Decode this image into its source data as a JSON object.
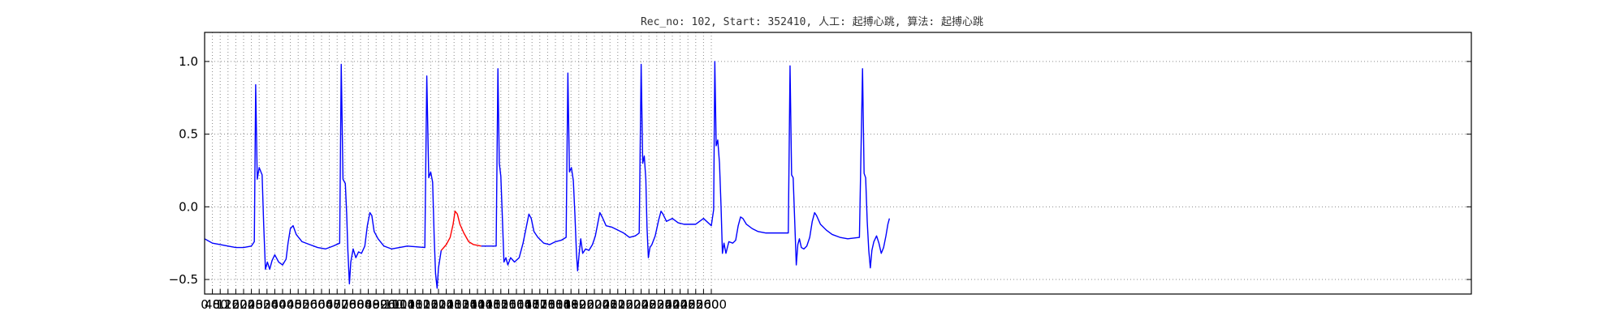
{
  "chart_data": {
    "type": "line",
    "title": "Rec_no: 102, Start: 352410, 人工: 起搏心跳, 算法: 起搏心跳",
    "xlabel": "",
    "ylabel": "",
    "xlim": [
      0,
      6500
    ],
    "ylim": [
      -0.6,
      1.2
    ],
    "grid": true,
    "ytick_labels": [
      "1.0",
      "0.5",
      "0.0",
      "−0.5"
    ],
    "yticks": [
      1.0,
      0.5,
      0.0,
      -0.5
    ],
    "xtick_labels": [
      "0",
      "40",
      "80",
      "120",
      "160",
      "200",
      "240",
      "280",
      "320",
      "360",
      "400",
      "440",
      "480",
      "520",
      "560",
      "600",
      "640",
      "680",
      "720",
      "760",
      "800",
      "840",
      "880",
      "920",
      "960",
      "1000",
      "1040",
      "1080",
      "1120",
      "1160",
      "1200",
      "1240",
      "1280",
      "1320",
      "1360",
      "1400",
      "1440",
      "1480",
      "1520",
      "1560",
      "1600",
      "1640",
      "1680",
      "1720",
      "1760",
      "1800",
      "1840",
      "1880",
      "1920",
      "1960",
      "2000",
      "2040",
      "2080",
      "2120",
      "2160",
      "2200",
      "2240",
      "2280",
      "2320",
      "2360",
      "2400",
      "2440",
      "2480",
      "2520",
      "2560",
      "2600"
    ],
    "highlight_range": [
      1219,
      1437
    ],
    "colors": {
      "normal": "#0000ff",
      "highlight": "#ff0000"
    },
    "series": [
      {
        "values": [
          [
            0,
            -0.22
          ],
          [
            40,
            -0.25
          ],
          [
            80,
            -0.26
          ],
          [
            120,
            -0.27
          ],
          [
            160,
            -0.28
          ],
          [
            200,
            -0.28
          ],
          [
            240,
            -0.27
          ],
          [
            255,
            -0.24
          ],
          [
            262,
            0.84
          ],
          [
            270,
            0.19
          ],
          [
            280,
            0.27
          ],
          [
            295,
            0.22
          ],
          [
            303,
            -0.12
          ],
          [
            312,
            -0.43
          ],
          [
            322,
            -0.38
          ],
          [
            334,
            -0.43
          ],
          [
            346,
            -0.37
          ],
          [
            360,
            -0.33
          ],
          [
            380,
            -0.38
          ],
          [
            400,
            -0.4
          ],
          [
            418,
            -0.36
          ],
          [
            428,
            -0.25
          ],
          [
            440,
            -0.15
          ],
          [
            454,
            -0.13
          ],
          [
            470,
            -0.19
          ],
          [
            500,
            -0.24
          ],
          [
            540,
            -0.26
          ],
          [
            580,
            -0.28
          ],
          [
            620,
            -0.29
          ],
          [
            660,
            -0.27
          ],
          [
            693,
            -0.25
          ],
          [
            701,
            0.98
          ],
          [
            710,
            0.19
          ],
          [
            722,
            0.16
          ],
          [
            729,
            -0.05
          ],
          [
            735,
            -0.3
          ],
          [
            743,
            -0.53
          ],
          [
            750,
            -0.38
          ],
          [
            762,
            -0.29
          ],
          [
            776,
            -0.35
          ],
          [
            790,
            -0.31
          ],
          [
            805,
            -0.32
          ],
          [
            822,
            -0.27
          ],
          [
            835,
            -0.13
          ],
          [
            848,
            -0.04
          ],
          [
            858,
            -0.06
          ],
          [
            870,
            -0.17
          ],
          [
            890,
            -0.22
          ],
          [
            920,
            -0.27
          ],
          [
            960,
            -0.29
          ],
          [
            1000,
            -0.28
          ],
          [
            1040,
            -0.27
          ],
          [
            1130,
            -0.28
          ],
          [
            1140,
            0.9
          ],
          [
            1150,
            0.2
          ],
          [
            1160,
            0.24
          ],
          [
            1170,
            0.17
          ],
          [
            1178,
            -0.21
          ],
          [
            1185,
            -0.46
          ],
          [
            1193,
            -0.56
          ],
          [
            1200,
            -0.42
          ],
          [
            1214,
            -0.3
          ],
          [
            1240,
            -0.26
          ],
          [
            1260,
            -0.21
          ],
          [
            1275,
            -0.12
          ],
          [
            1285,
            -0.03
          ],
          [
            1297,
            -0.05
          ],
          [
            1310,
            -0.12
          ],
          [
            1330,
            -0.18
          ],
          [
            1355,
            -0.24
          ],
          [
            1380,
            -0.26
          ],
          [
            1420,
            -0.27
          ],
          [
            1460,
            -0.27
          ],
          [
            1496,
            -0.27
          ],
          [
            1505,
            0.95
          ],
          [
            1512,
            0.3
          ],
          [
            1520,
            0.21
          ],
          [
            1528,
            -0.08
          ],
          [
            1536,
            -0.38
          ],
          [
            1546,
            -0.35
          ],
          [
            1556,
            -0.4
          ],
          [
            1570,
            -0.35
          ],
          [
            1590,
            -0.38
          ],
          [
            1614,
            -0.35
          ],
          [
            1634,
            -0.25
          ],
          [
            1652,
            -0.13
          ],
          [
            1664,
            -0.05
          ],
          [
            1676,
            -0.08
          ],
          [
            1690,
            -0.17
          ],
          [
            1710,
            -0.21
          ],
          [
            1740,
            -0.25
          ],
          [
            1770,
            -0.26
          ],
          [
            1800,
            -0.24
          ],
          [
            1830,
            -0.23
          ],
          [
            1855,
            -0.21
          ],
          [
            1864,
            0.92
          ],
          [
            1872,
            0.24
          ],
          [
            1882,
            0.27
          ],
          [
            1892,
            0.18
          ],
          [
            1900,
            -0.05
          ],
          [
            1908,
            -0.32
          ],
          [
            1914,
            -0.44
          ],
          [
            1922,
            -0.32
          ],
          [
            1930,
            -0.22
          ],
          [
            1940,
            -0.32
          ],
          [
            1955,
            -0.29
          ],
          [
            1972,
            -0.3
          ],
          [
            1990,
            -0.26
          ],
          [
            2005,
            -0.2
          ],
          [
            2018,
            -0.11
          ],
          [
            2028,
            -0.04
          ],
          [
            2040,
            -0.07
          ],
          [
            2060,
            -0.13
          ],
          [
            2090,
            -0.14
          ],
          [
            2120,
            -0.16
          ],
          [
            2150,
            -0.18
          ],
          [
            2180,
            -0.21
          ],
          [
            2210,
            -0.2
          ],
          [
            2230,
            -0.18
          ],
          [
            2240,
            0.98
          ],
          [
            2248,
            0.3
          ],
          [
            2256,
            0.35
          ],
          [
            2264,
            0.19
          ],
          [
            2270,
            -0.14
          ],
          [
            2277,
            -0.35
          ],
          [
            2285,
            -0.28
          ],
          [
            2295,
            -0.26
          ],
          [
            2312,
            -0.2
          ],
          [
            2330,
            -0.09
          ],
          [
            2342,
            -0.03
          ],
          [
            2352,
            -0.05
          ],
          [
            2370,
            -0.1
          ],
          [
            2400,
            -0.08
          ],
          [
            2430,
            -0.11
          ],
          [
            2460,
            -0.12
          ],
          [
            2490,
            -0.12
          ],
          [
            2520,
            -0.12
          ],
          [
            2560,
            -0.08
          ],
          [
            2600,
            -0.13
          ],
          [
            2612,
            -0.02
          ],
          [
            2618,
            1.0
          ],
          [
            2625,
            0.42
          ],
          [
            2633,
            0.46
          ],
          [
            2642,
            0.3
          ],
          [
            2650,
            0.0
          ],
          [
            2657,
            -0.32
          ],
          [
            2665,
            -0.25
          ],
          [
            2675,
            -0.32
          ],
          [
            2690,
            -0.24
          ],
          [
            2710,
            -0.25
          ],
          [
            2725,
            -0.23
          ],
          [
            2738,
            -0.13
          ],
          [
            2750,
            -0.07
          ],
          [
            2762,
            -0.08
          ],
          [
            2780,
            -0.12
          ],
          [
            2810,
            -0.15
          ],
          [
            2840,
            -0.17
          ],
          [
            2880,
            -0.18
          ],
          [
            2910,
            -0.18
          ],
          [
            2995,
            -0.18
          ],
          [
            3004,
            0.97
          ],
          [
            3012,
            0.22
          ],
          [
            3020,
            0.2
          ],
          [
            3028,
            -0.1
          ],
          [
            3036,
            -0.4
          ],
          [
            3044,
            -0.26
          ],
          [
            3052,
            -0.22
          ],
          [
            3062,
            -0.28
          ],
          [
            3075,
            -0.29
          ],
          [
            3090,
            -0.27
          ],
          [
            3105,
            -0.21
          ],
          [
            3118,
            -0.1
          ],
          [
            3130,
            -0.04
          ],
          [
            3140,
            -0.06
          ],
          [
            3160,
            -0.12
          ],
          [
            3190,
            -0.16
          ],
          [
            3220,
            -0.19
          ],
          [
            3260,
            -0.21
          ],
          [
            3300,
            -0.22
          ],
          [
            3360,
            -0.21
          ],
          [
            3376,
            0.95
          ],
          [
            3384,
            0.23
          ],
          [
            3392,
            0.2
          ],
          [
            3400,
            -0.1
          ],
          [
            3408,
            -0.3
          ],
          [
            3416,
            -0.42
          ],
          [
            3424,
            -0.3
          ],
          [
            3434,
            -0.24
          ],
          [
            3448,
            -0.2
          ],
          [
            3460,
            -0.25
          ],
          [
            3472,
            -0.32
          ],
          [
            3484,
            -0.28
          ],
          [
            3496,
            -0.2
          ],
          [
            3506,
            -0.12
          ],
          [
            3514,
            -0.08
          ]
        ]
      }
    ]
  }
}
